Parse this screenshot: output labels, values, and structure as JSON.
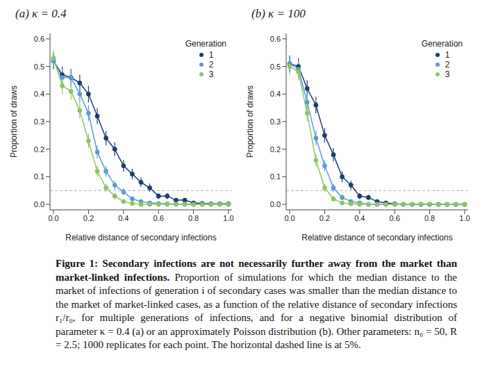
{
  "chart_data": [
    {
      "type": "line",
      "title": "(a) κ = 0.4",
      "x_label": "Relative distance of secondary infections",
      "y_label": "Proportion of draws",
      "legend_title": "Generation",
      "legend": "upper right",
      "x": [
        0,
        0.05,
        0.1,
        0.15,
        0.2,
        0.25,
        0.3,
        0.35,
        0.4,
        0.45,
        0.5,
        0.55,
        0.6,
        0.65,
        0.7,
        0.75,
        0.8,
        0.85,
        0.9,
        0.95,
        1
      ],
      "xlim": [
        -0.02,
        1.02
      ],
      "xticks": [
        {
          "value": 0,
          "label": "0.0"
        },
        {
          "value": 0.2,
          "label": "0.2"
        },
        {
          "value": 0.4,
          "label": "0.4"
        },
        {
          "value": 0.6,
          "label": "0.6"
        },
        {
          "value": 0.8,
          "label": "0.8"
        },
        {
          "value": 1,
          "label": "1.0"
        }
      ],
      "ylim": [
        -0.02,
        0.62
      ],
      "yticks": [
        {
          "value": 0,
          "label": "0.0"
        },
        0.1,
        0.2,
        0.3,
        0.4,
        0.5,
        0.6
      ],
      "hline": {
        "value": 0.05,
        "line_style": "dashed",
        "color": "#aaaaaa"
      },
      "series": [
        {
          "name": "1",
          "color": "#1c3d6e",
          "marker": "circle",
          "values": [
            0.52,
            0.47,
            0.46,
            0.44,
            0.4,
            0.32,
            0.24,
            0.2,
            0.14,
            0.11,
            0.08,
            0.06,
            0.03,
            0.03,
            0.015,
            0.015,
            0.005,
            0.003,
            0.002,
            0.002,
            0.002
          ],
          "errors": [
            0.03,
            0.03,
            0.03,
            0.03,
            0.03,
            0.029,
            0.026,
            0.025,
            0.021,
            0.019,
            0.017,
            0.015,
            0.011,
            0.011,
            0.008,
            0.008,
            0.004,
            0.003,
            0.003,
            0.003,
            0.003
          ]
        },
        {
          "name": "2",
          "color": "#5b9bd5",
          "marker": "circle",
          "values": [
            0.52,
            0.46,
            0.46,
            0.4,
            0.33,
            0.19,
            0.12,
            0.07,
            0.045,
            0.02,
            0.01,
            0.005,
            0.003,
            0.002,
            0.001,
            0.001,
            0,
            0,
            0,
            0,
            0
          ],
          "errors": [
            0.03,
            0.03,
            0.03,
            0.03,
            0.029,
            0.024,
            0.02,
            0.016,
            0.013,
            0.009,
            0.006,
            0.004,
            0.003,
            0.003,
            0.002,
            0.002,
            0,
            0,
            0,
            0,
            0
          ]
        },
        {
          "name": "3",
          "color": "#8dc563",
          "marker": "circle",
          "values": [
            0.53,
            0.43,
            0.41,
            0.34,
            0.23,
            0.12,
            0.06,
            0.03,
            0.01,
            0.003,
            0,
            0,
            0,
            0,
            0,
            0,
            0,
            0,
            0,
            0,
            0
          ],
          "errors": [
            0.03,
            0.03,
            0.03,
            0.029,
            0.026,
            0.02,
            0.015,
            0.011,
            0.006,
            0.003,
            0,
            0,
            0,
            0,
            0,
            0,
            0,
            0,
            0,
            0,
            0
          ]
        }
      ]
    },
    {
      "type": "line",
      "title": "(b) κ = 100",
      "x_label": "Relative distance of secondary infections",
      "y_label": "Proportion of draws",
      "legend_title": "Generation",
      "legend": "upper right",
      "x": [
        0,
        0.05,
        0.1,
        0.15,
        0.2,
        0.25,
        0.3,
        0.35,
        0.4,
        0.45,
        0.5,
        0.55,
        0.6,
        0.65,
        0.7,
        0.75,
        0.8,
        0.85,
        0.9,
        0.95,
        1
      ],
      "xlim": [
        -0.02,
        1.02
      ],
      "xticks": [
        {
          "value": 0,
          "label": "0.0"
        },
        {
          "value": 0.2,
          "label": "0.2"
        },
        {
          "value": 0.4,
          "label": "0.4"
        },
        {
          "value": 0.6,
          "label": "0.6"
        },
        {
          "value": 0.8,
          "label": "0.8"
        },
        {
          "value": 1,
          "label": "1.0"
        }
      ],
      "ylim": [
        -0.02,
        0.62
      ],
      "yticks": [
        {
          "value": 0,
          "label": "0.0"
        },
        0.1,
        0.2,
        0.3,
        0.4,
        0.5,
        0.6
      ],
      "hline": {
        "value": 0.05,
        "line_style": "dashed",
        "color": "#aaaaaa"
      },
      "series": [
        {
          "name": "1",
          "color": "#1c3d6e",
          "marker": "circle",
          "values": [
            0.51,
            0.5,
            0.42,
            0.36,
            0.25,
            0.18,
            0.1,
            0.07,
            0.03,
            0.025,
            0.01,
            0.005,
            0.002,
            0,
            0,
            0,
            0,
            0,
            0,
            0,
            0
          ],
          "errors": [
            0.03,
            0.03,
            0.03,
            0.03,
            0.027,
            0.024,
            0.019,
            0.016,
            0.011,
            0.01,
            0.006,
            0.004,
            0.003,
            0,
            0,
            0,
            0,
            0,
            0,
            0,
            0
          ]
        },
        {
          "name": "2",
          "color": "#5b9bd5",
          "marker": "circle",
          "values": [
            0.51,
            0.49,
            0.37,
            0.24,
            0.14,
            0.06,
            0.025,
            0.01,
            0.005,
            0,
            0,
            0,
            0,
            0,
            0,
            0,
            0,
            0,
            0,
            0,
            0
          ],
          "errors": [
            0.03,
            0.03,
            0.03,
            0.026,
            0.021,
            0.015,
            0.01,
            0.006,
            0.004,
            0,
            0,
            0,
            0,
            0,
            0,
            0,
            0,
            0,
            0,
            0,
            0
          ]
        },
        {
          "name": "3",
          "color": "#8dc563",
          "marker": "circle",
          "values": [
            0.5,
            0.48,
            0.33,
            0.16,
            0.06,
            0.02,
            0.005,
            0.002,
            0,
            0,
            0,
            0,
            0,
            0,
            0,
            0,
            0,
            0,
            0,
            0,
            0
          ],
          "errors": [
            0.03,
            0.03,
            0.029,
            0.023,
            0.015,
            0.009,
            0.004,
            0.003,
            0,
            0,
            0,
            0,
            0,
            0,
            0,
            0,
            0,
            0,
            0,
            0,
            0
          ]
        }
      ]
    }
  ],
  "caption": {
    "title": "Figure 1: Secondary infections are not necessarily further away from the market than market-linked infections.",
    "text": "Proportion of simulations for which the median distance to the market of infections of generation i of secondary cases was smaller than the median distance to the market of market-linked cases, as a function of the relative distance of secondary infections r₁/r₀, for multiple generations of infections, and for a negative binomial distribution of parameter κ = 0.4 (a) or an approximately Poisson distribution (b). Other parameters: n₀ = 50, R = 2.5; 1000 replicates for each point. The horizontal dashed line is at 5%."
  }
}
